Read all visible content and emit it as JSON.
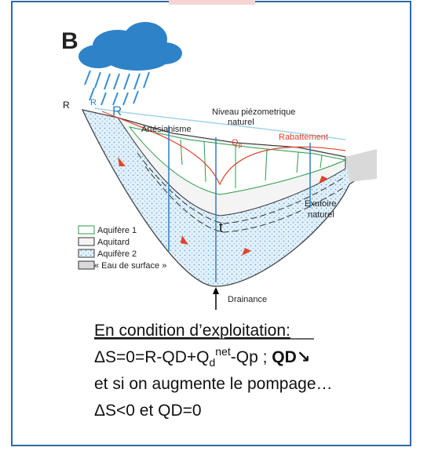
{
  "panel": {
    "letter": "B",
    "labels": {
      "r_left": "R",
      "r_small": "R",
      "r_blue": "R",
      "niveau": [
        "Niveau piézometrique",
        "naturel"
      ],
      "artesianisme": "Artésianisme",
      "qp": {
        "base": "Q",
        "sub": "p"
      },
      "rabattement": "Rabattement",
      "exutoire": [
        "Exutoire",
        "naturel"
      ],
      "t": "t",
      "drainance": "Drainance"
    },
    "legend": [
      "Aquifère 1",
      "Aquitard",
      "Aquifère 2",
      "« Eau de surface »"
    ]
  },
  "text": {
    "heading": "En condition d’exploitation:",
    "equation": {
      "start": "ΔS=0=R-QD+Q",
      "sub": "d",
      "sup": "net",
      "rest": "-Qp ; ",
      "bold": "QD↘"
    },
    "line3": "et si on augmente le pompage…",
    "line4": "ΔS<0 et QD=0"
  }
}
